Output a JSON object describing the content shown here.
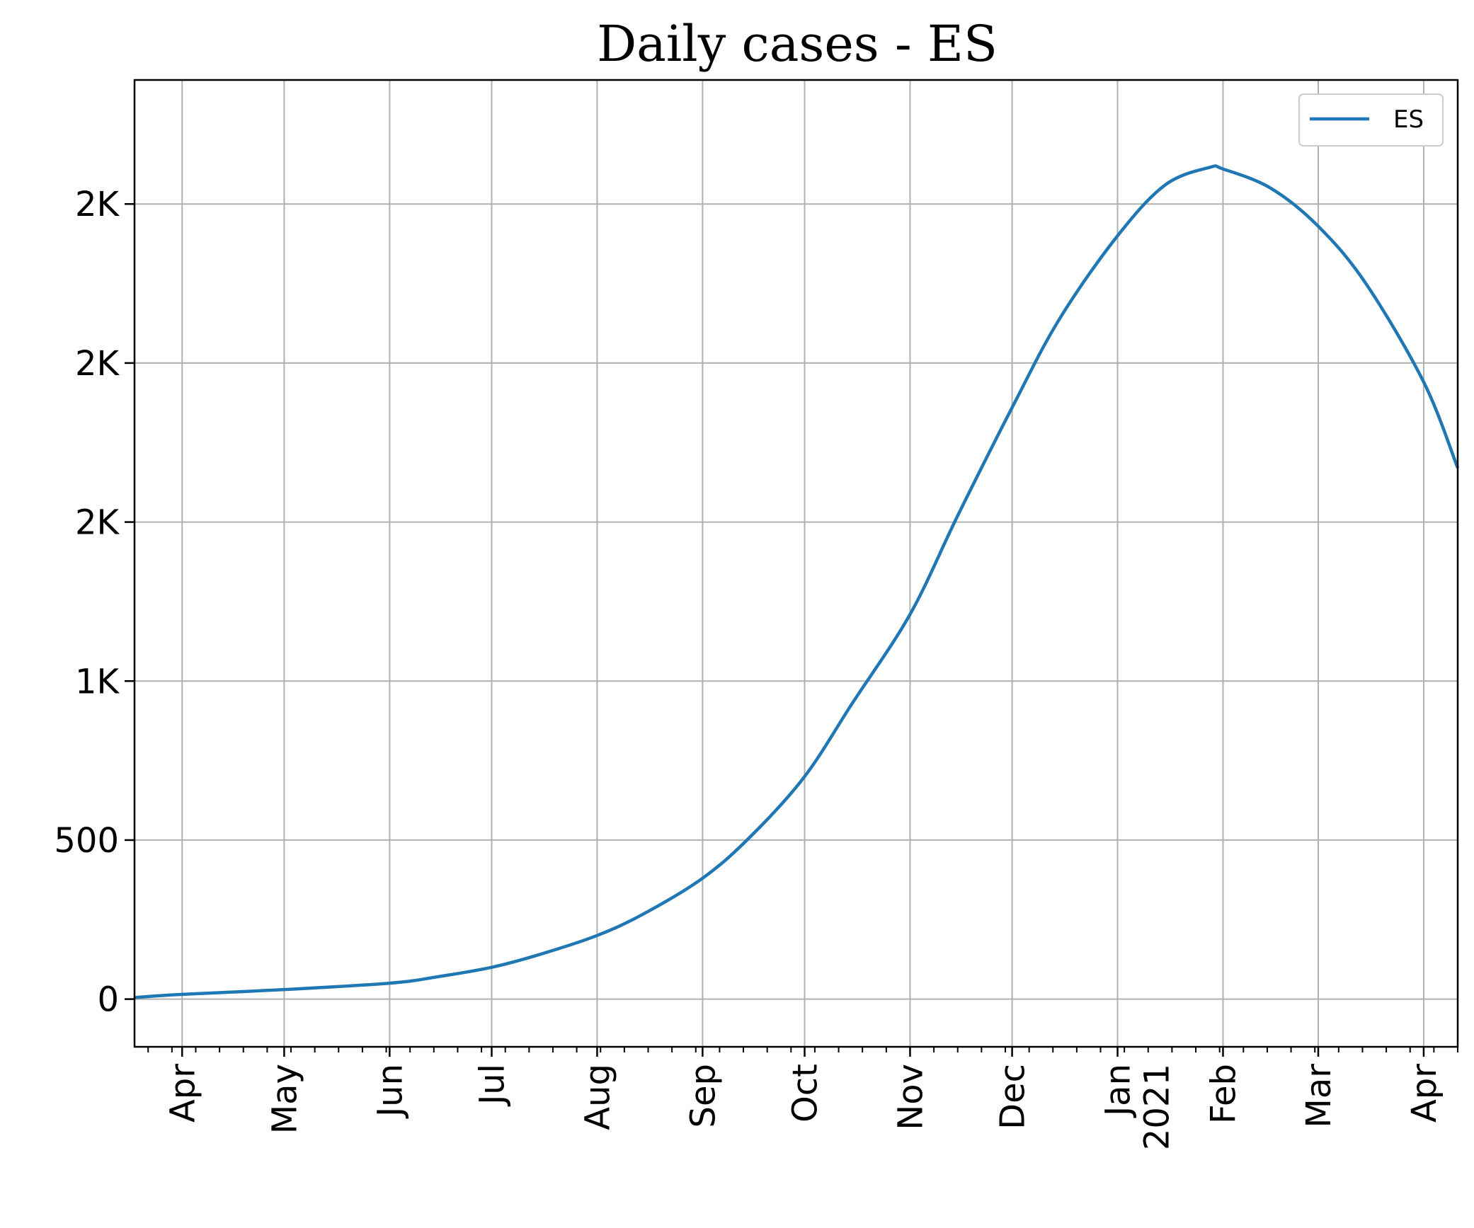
{
  "chart_data": {
    "type": "line",
    "title": "Daily cases - ES",
    "xlabel": "",
    "ylabel": "",
    "xlim": [
      "2020-03-18",
      "2021-04-11"
    ],
    "ylim": [
      -150,
      2890
    ],
    "grid": true,
    "legend": {
      "position": "top-right",
      "entries": [
        "ES"
      ]
    },
    "colors": {
      "series": "#1f77b4",
      "grid": "#b0b0b0",
      "axes": "#000000"
    },
    "y_ticks": [
      {
        "value": 0,
        "label": "0"
      },
      {
        "value": 500,
        "label": "500"
      },
      {
        "value": 1000,
        "label": "1K"
      },
      {
        "value": 1500,
        "label": "2K"
      },
      {
        "value": 2000,
        "label": "2K"
      },
      {
        "value": 2500,
        "label": "2K"
      }
    ],
    "x_ticks": [
      {
        "date": "2020-04-01",
        "label": "Apr"
      },
      {
        "date": "2020-05-01",
        "label": "May"
      },
      {
        "date": "2020-06-01",
        "label": "Jun"
      },
      {
        "date": "2020-07-01",
        "label": "Jul"
      },
      {
        "date": "2020-08-01",
        "label": "Aug"
      },
      {
        "date": "2020-09-01",
        "label": "Sep"
      },
      {
        "date": "2020-10-01",
        "label": "Oct"
      },
      {
        "date": "2020-11-01",
        "label": "Nov"
      },
      {
        "date": "2020-12-01",
        "label": "Dec"
      },
      {
        "date": "2021-01-01",
        "label": "Jan",
        "label2": "2021"
      },
      {
        "date": "2021-02-01",
        "label": "Feb"
      },
      {
        "date": "2021-03-01",
        "label": "Mar"
      },
      {
        "date": "2021-04-01",
        "label": "Apr"
      }
    ],
    "series": [
      {
        "name": "ES",
        "x": [
          "2020-03-18",
          "2020-04-01",
          "2020-05-01",
          "2020-06-01",
          "2020-06-15",
          "2020-07-01",
          "2020-07-15",
          "2020-08-01",
          "2020-08-15",
          "2020-09-01",
          "2020-09-15",
          "2020-10-01",
          "2020-10-15",
          "2020-11-01",
          "2020-11-15",
          "2020-12-01",
          "2020-12-15",
          "2021-01-01",
          "2021-01-15",
          "2021-01-28",
          "2021-02-01",
          "2021-02-15",
          "2021-03-01",
          "2021-03-15",
          "2021-04-01",
          "2021-04-11"
        ],
        "y": [
          5,
          15,
          30,
          50,
          70,
          100,
          140,
          200,
          270,
          380,
          510,
          700,
          930,
          1210,
          1520,
          1860,
          2140,
          2400,
          2560,
          2615,
          2610,
          2550,
          2430,
          2250,
          1940,
          1670
        ]
      }
    ]
  }
}
